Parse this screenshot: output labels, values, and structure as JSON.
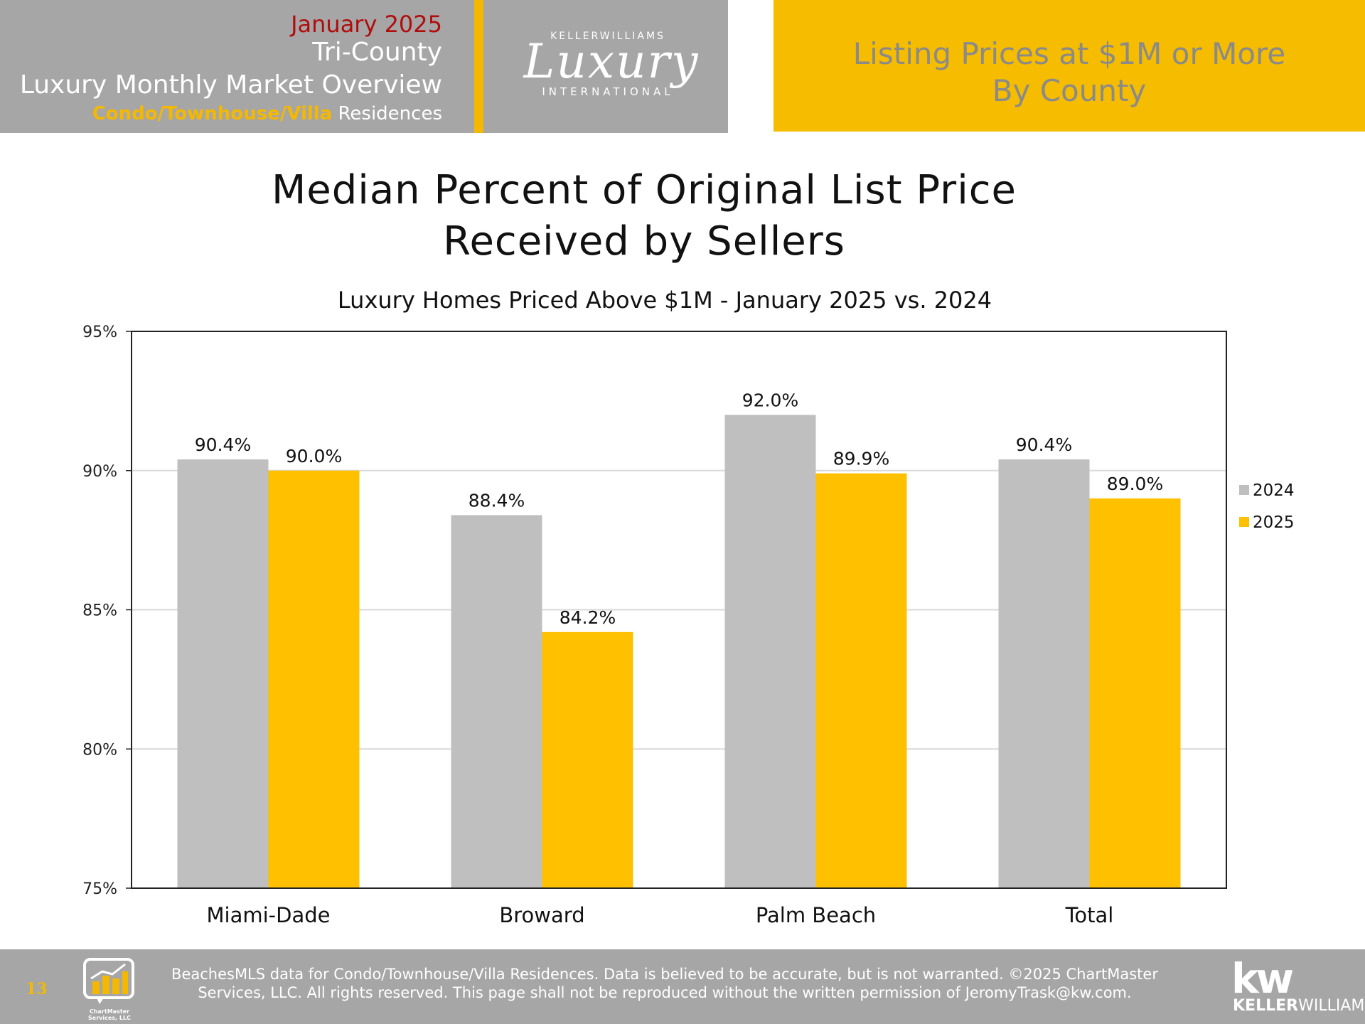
{
  "header": {
    "month": "January 2025",
    "region": "Tri-County",
    "overview": "Luxury Monthly Market Overview",
    "property_type_highlight": "Condo/Townhouse/Villa",
    "property_type_rest": " Residences",
    "logo": {
      "brand": "KELLERWILLIAMS",
      "script": "Luxury",
      "sub": "INTERNATIONAL"
    },
    "topic_line1": "Listing Prices at $1M or More",
    "topic_line2": "By County"
  },
  "title_line1": "Median Percent of Original List Price",
  "title_line2": "Received by Sellers",
  "chart_data": {
    "type": "bar",
    "subtitle": "Luxury Homes Priced Above $1M - January 2025 vs. 2024",
    "categories": [
      "Miami-Dade",
      "Broward",
      "Palm Beach",
      "Total"
    ],
    "series": [
      {
        "name": "2024",
        "values": [
          90.4,
          88.4,
          92.0,
          90.4
        ],
        "labels": [
          "90.4%",
          "88.4%",
          "92.0%",
          "90.4%"
        ],
        "color": "#bfbfbf"
      },
      {
        "name": "2025",
        "values": [
          90.0,
          84.2,
          89.9,
          89.0
        ],
        "labels": [
          "90.0%",
          "84.2%",
          "89.9%",
          "89.0%"
        ],
        "color": "#ffc000"
      }
    ],
    "ylim": [
      75,
      95
    ],
    "yticks": [
      "75%",
      "80%",
      "85%",
      "90%",
      "95%"
    ],
    "ytick_values": [
      75,
      80,
      85,
      90,
      95
    ],
    "grid": true,
    "legend_position": "right"
  },
  "footer": {
    "page_number": "13",
    "chartmaster_name": "ChartMaster",
    "chartmaster_sub": "Services, LLC",
    "disclaimer_line1": "BeachesMLS data for Condo/Townhouse/Villa Residences.  Data is believed to be accurate, but is not warranted.   ©2025  ChartMaster",
    "disclaimer_line2": "Services, LLC.  All rights reserved. This page shall not be reproduced without the written permission of JeromyTrask@kw.com.",
    "kw_mark": "kw",
    "kw_name_bold": "KELLER",
    "kw_name_rest": "WILLIAMS."
  },
  "colors": {
    "header_gray": "#a6a6a6",
    "accent_yellow": "#f5b800",
    "month_red": "#b10d0d",
    "topic_text": "#8a8a8a"
  }
}
